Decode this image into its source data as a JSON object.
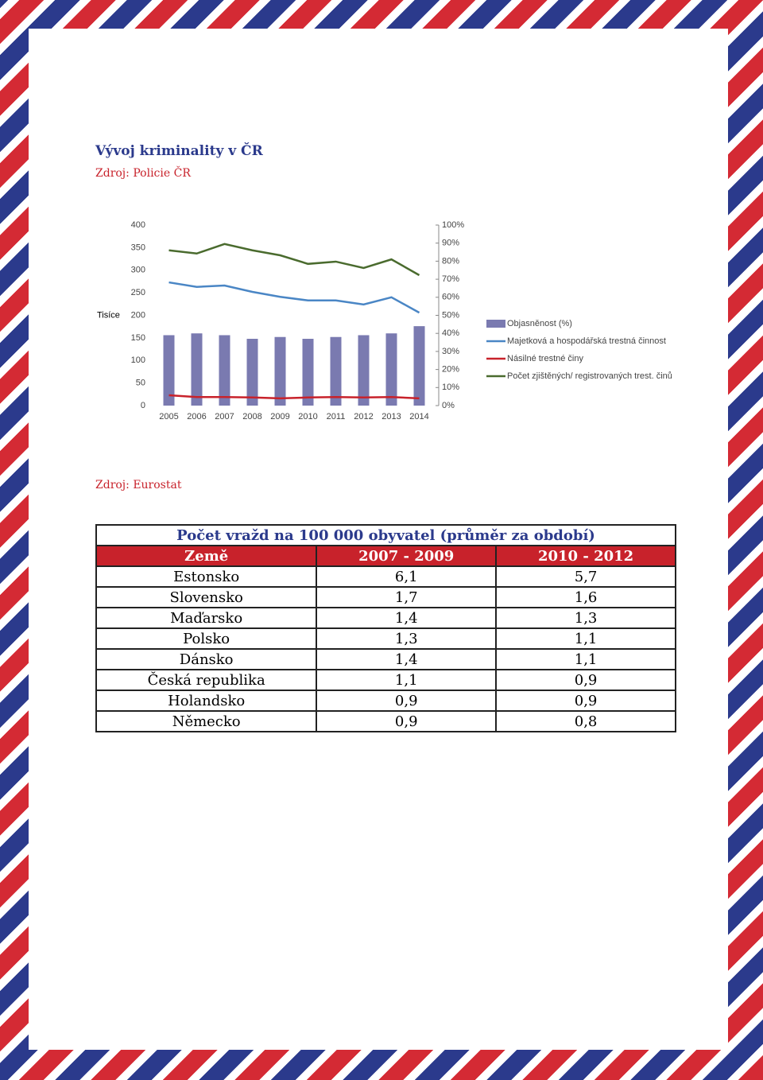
{
  "header": {
    "title": "Vývoj kriminality v ČR",
    "source": "Zdroj: Policie ČR"
  },
  "chart_data": {
    "type": "combo",
    "ylabel": "Tisíce",
    "categories": [
      "2005",
      "2006",
      "2007",
      "2008",
      "2009",
      "2010",
      "2011",
      "2012",
      "2013",
      "2014"
    ],
    "ylim": [
      0,
      400
    ],
    "yticks": [
      0,
      50,
      100,
      150,
      200,
      250,
      300,
      350,
      400
    ],
    "y2lim": [
      0,
      100
    ],
    "y2ticks": [
      {
        "value": 0,
        "label": "0%"
      },
      {
        "value": 10,
        "label": "10%"
      },
      {
        "value": 20,
        "label": "20%"
      },
      {
        "value": 30,
        "label": "30%"
      },
      {
        "value": 40,
        "label": "40%"
      },
      {
        "value": 50,
        "label": "50%"
      },
      {
        "value": 60,
        "label": "60%"
      },
      {
        "value": 70,
        "label": "70%"
      },
      {
        "value": 80,
        "label": "80%"
      },
      {
        "value": 90,
        "label": "90%"
      },
      {
        "value": 100,
        "label": "100%"
      }
    ],
    "legend": "right",
    "series": [
      {
        "name": "Objasněnost (%)",
        "type": "bar",
        "axis": "y2",
        "color": "#7a7ab0",
        "values": [
          39,
          40,
          39,
          37,
          38,
          37,
          38,
          39,
          40,
          44
        ]
      },
      {
        "name": "Majetková a hospodářská trestná činnost",
        "type": "line",
        "color": "#4a86c5",
        "values": [
          273,
          263,
          266,
          252,
          241,
          233,
          233,
          224,
          240,
          206
        ]
      },
      {
        "name": "Násilné trestné činy",
        "type": "line",
        "color": "#c8222b",
        "values": [
          23,
          19,
          19,
          18,
          16,
          18,
          19,
          18,
          19,
          16
        ]
      },
      {
        "name": "Počet zjištěných/ registrovaných trest. činů",
        "type": "line",
        "color": "#4a6b2e",
        "values": [
          344,
          337,
          358,
          344,
          333,
          314,
          319,
          305,
          324,
          289
        ]
      }
    ]
  },
  "table_source": "Zdroj: Eurostat",
  "table": {
    "title": "Počet vražd na 100 000 obyvatel (průměr za období)",
    "columns": [
      "Země",
      "2007 - 2009",
      "2010 - 2012"
    ],
    "rows": [
      [
        "Estonsko",
        "6,1",
        "5,7"
      ],
      [
        "Slovensko",
        "1,7",
        "1,6"
      ],
      [
        "Maďarsko",
        "1,4",
        "1,3"
      ],
      [
        "Polsko",
        "1,3",
        "1,1"
      ],
      [
        "Dánsko",
        "1,4",
        "1,1"
      ],
      [
        "Česká republika",
        "1,1",
        "0,9"
      ],
      [
        "Holandsko",
        "0,9",
        "0,9"
      ],
      [
        "Německo",
        "0,9",
        "0,8"
      ]
    ]
  }
}
